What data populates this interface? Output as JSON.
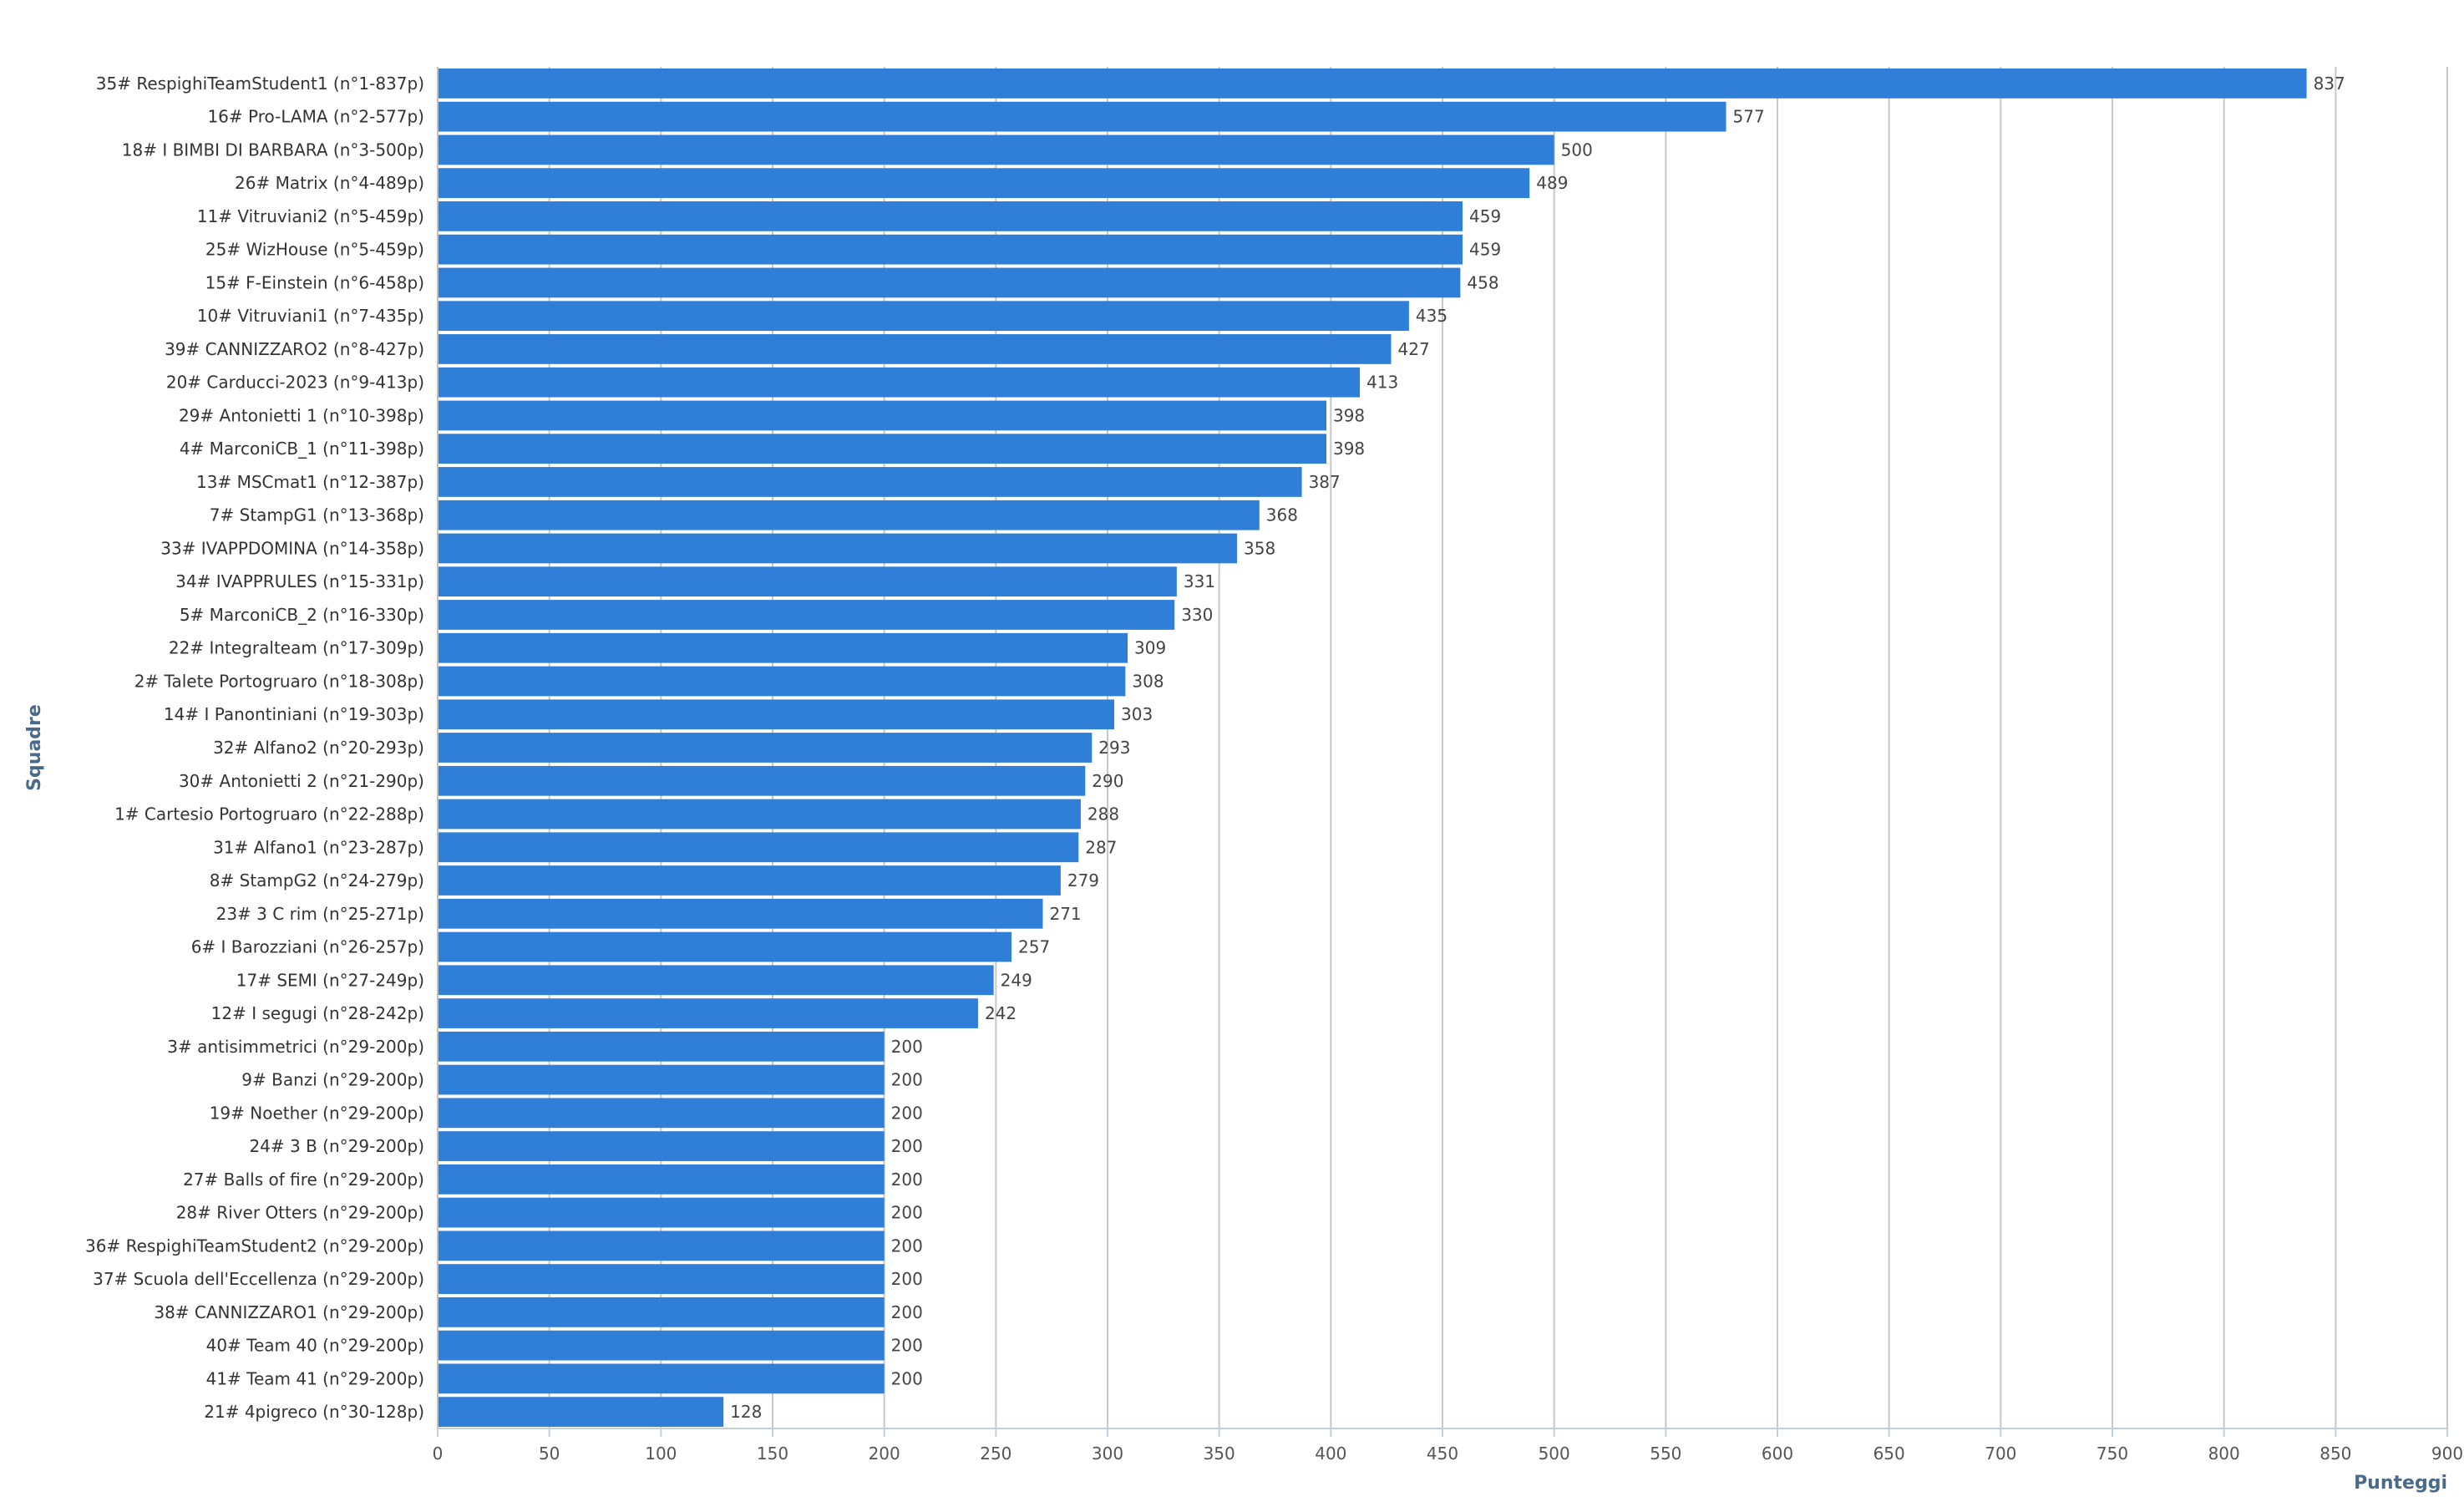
{
  "chart_data": {
    "type": "bar",
    "orientation": "horizontal",
    "xlabel": "Punteggi",
    "ylabel": "Squadre",
    "xlim": [
      0,
      900
    ],
    "x_ticks": [
      "0",
      "50",
      "100",
      "150",
      "200",
      "250",
      "300",
      "350",
      "400",
      "450",
      "500",
      "550",
      "600",
      "650",
      "700",
      "750",
      "800",
      "850",
      "900"
    ],
    "grid": true,
    "bar_color": "#2f7ed8",
    "categories": [
      "35# RespighiTeamStudent1 (n°1-837p)",
      "16# Pro-LAMA (n°2-577p)",
      "18# I BIMBI DI BARBARA (n°3-500p)",
      "26# Matrix (n°4-489p)",
      "11# Vitruviani2 (n°5-459p)",
      "25# WizHouse (n°5-459p)",
      "15# F-Einstein (n°6-458p)",
      "10# Vitruviani1 (n°7-435p)",
      "39# CANNIZZARO2 (n°8-427p)",
      "20# Carducci-2023 (n°9-413p)",
      "29# Antonietti 1 (n°10-398p)",
      "4# MarconiCB_1 (n°11-398p)",
      "13# MSCmat1 (n°12-387p)",
      "7# StampG1 (n°13-368p)",
      "33# IVAPPDOMINA (n°14-358p)",
      "34# IVAPPRULES (n°15-331p)",
      "5# MarconiCB_2 (n°16-330p)",
      "22# Integralteam (n°17-309p)",
      "2# Talete Portogruaro (n°18-308p)",
      "14# I Panontiniani (n°19-303p)",
      "32# Alfano2 (n°20-293p)",
      "30# Antonietti 2 (n°21-290p)",
      "1# Cartesio Portogruaro (n°22-288p)",
      "31# Alfano1 (n°23-287p)",
      "8# StampG2 (n°24-279p)",
      "23# 3 C rim (n°25-271p)",
      "6# I Barozziani (n°26-257p)",
      "17# SEMI (n°27-249p)",
      "12# I segugi (n°28-242p)",
      "3# antisimmetrici (n°29-200p)",
      "9# Banzi (n°29-200p)",
      "19# Noether (n°29-200p)",
      "24# 3 B (n°29-200p)",
      "27# Balls of fire (n°29-200p)",
      "28# River Otters (n°29-200p)",
      "36# RespighiTeamStudent2 (n°29-200p)",
      "37# Scuola dell'Eccellenza (n°29-200p)",
      "38# CANNIZZARO1 (n°29-200p)",
      "40# Team 40 (n°29-200p)",
      "41# Team 41 (n°29-200p)",
      "21# 4pigreco (n°30-128p)"
    ],
    "values": [
      837,
      577,
      500,
      489,
      459,
      459,
      458,
      435,
      427,
      413,
      398,
      398,
      387,
      368,
      358,
      331,
      330,
      309,
      308,
      303,
      293,
      290,
      288,
      287,
      279,
      271,
      257,
      249,
      242,
      200,
      200,
      200,
      200,
      200,
      200,
      200,
      200,
      200,
      200,
      200,
      128
    ]
  }
}
